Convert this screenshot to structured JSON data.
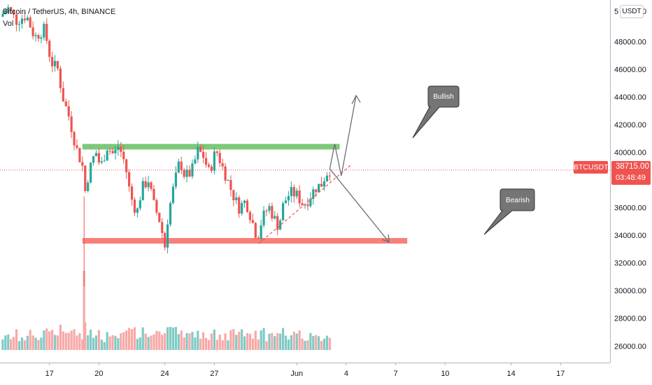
{
  "header": {
    "symbol_line": "Bitcoin / TetherUS, 4h, BINANCE",
    "volume_label": "Vol"
  },
  "price_axis": {
    "currency_button": "USDT",
    "currency_suffix": "0",
    "top_partial_label": "5",
    "symbol_badge": "BTCUSDT",
    "last_price": "38715.00",
    "countdown": "03:48:49"
  },
  "annotations": {
    "bullish_label": "Bullish",
    "bearish_label": "Bearish"
  },
  "colors": {
    "up": "#26a69a",
    "down": "#ef5350",
    "resistance": "#7cc97a",
    "support": "#f8807a",
    "vol_up": "#80cbc4",
    "vol_down": "#f7a9a7",
    "callout": "#757575",
    "badge": "#ef5350"
  },
  "chart_data": {
    "type": "candlestick",
    "title": "Bitcoin / TetherUS, 4h, BINANCE",
    "y_ticks": [
      "26000.00",
      "28000.00",
      "30000.00",
      "32000.00",
      "34000.00",
      "36000.00",
      "38000.00",
      "40000.00",
      "42000.00",
      "44000.00",
      "46000.00",
      "48000.00"
    ],
    "ylim": [
      24800,
      51000
    ],
    "x_ticks": [
      {
        "label": "17",
        "day": 17
      },
      {
        "label": "20",
        "day": 20
      },
      {
        "label": "24",
        "day": 24
      },
      {
        "label": "27",
        "day": 27
      },
      {
        "label": "Jun",
        "day": 32
      },
      {
        "label": "4",
        "day": 35
      },
      {
        "label": "7",
        "day": 38
      },
      {
        "label": "10",
        "day": 41
      },
      {
        "label": "14",
        "day": 45
      },
      {
        "label": "17",
        "day": 48
      }
    ],
    "xlim": [
      14,
      51
    ],
    "last_price": 38715,
    "resistance_level": 40400,
    "support_level": 33600,
    "close_keypoints": [
      [
        14.0,
        49800
      ],
      [
        14.5,
        50400
      ],
      [
        15.0,
        49500
      ],
      [
        15.6,
        49900
      ],
      [
        16.1,
        48300
      ],
      [
        16.7,
        48900
      ],
      [
        17.1,
        46500
      ],
      [
        17.5,
        46000
      ],
      [
        17.8,
        44000
      ],
      [
        18.2,
        42500
      ],
      [
        18.6,
        40400
      ],
      [
        19.0,
        39000
      ],
      [
        19.1,
        36800
      ],
      [
        19.4,
        38600
      ],
      [
        19.8,
        40100
      ],
      [
        20.1,
        38900
      ],
      [
        20.5,
        40400
      ],
      [
        20.9,
        39800
      ],
      [
        21.2,
        40500
      ],
      [
        21.6,
        39100
      ],
      [
        21.9,
        36900
      ],
      [
        22.3,
        35600
      ],
      [
        22.6,
        37400
      ],
      [
        23.0,
        38000
      ],
      [
        23.3,
        36300
      ],
      [
        23.7,
        35000
      ],
      [
        24.0,
        33200
      ],
      [
        24.2,
        35500
      ],
      [
        24.5,
        37300
      ],
      [
        24.9,
        39400
      ],
      [
        25.2,
        38300
      ],
      [
        25.6,
        38500
      ],
      [
        26.0,
        40100
      ],
      [
        26.3,
        39800
      ],
      [
        26.7,
        38500
      ],
      [
        27.1,
        40200
      ],
      [
        27.5,
        38900
      ],
      [
        27.8,
        38000
      ],
      [
        28.1,
        37000
      ],
      [
        28.5,
        36000
      ],
      [
        28.9,
        36500
      ],
      [
        29.3,
        35000
      ],
      [
        29.6,
        33800
      ],
      [
        29.9,
        35200
      ],
      [
        30.3,
        36100
      ],
      [
        30.6,
        35300
      ],
      [
        30.9,
        34600
      ],
      [
        31.2,
        36300
      ],
      [
        31.6,
        37100
      ],
      [
        32.0,
        36900
      ],
      [
        32.4,
        36200
      ],
      [
        32.7,
        36600
      ],
      [
        33.1,
        37400
      ],
      [
        33.5,
        37700
      ],
      [
        33.8,
        38500
      ],
      [
        34.0,
        38700
      ]
    ]
  }
}
